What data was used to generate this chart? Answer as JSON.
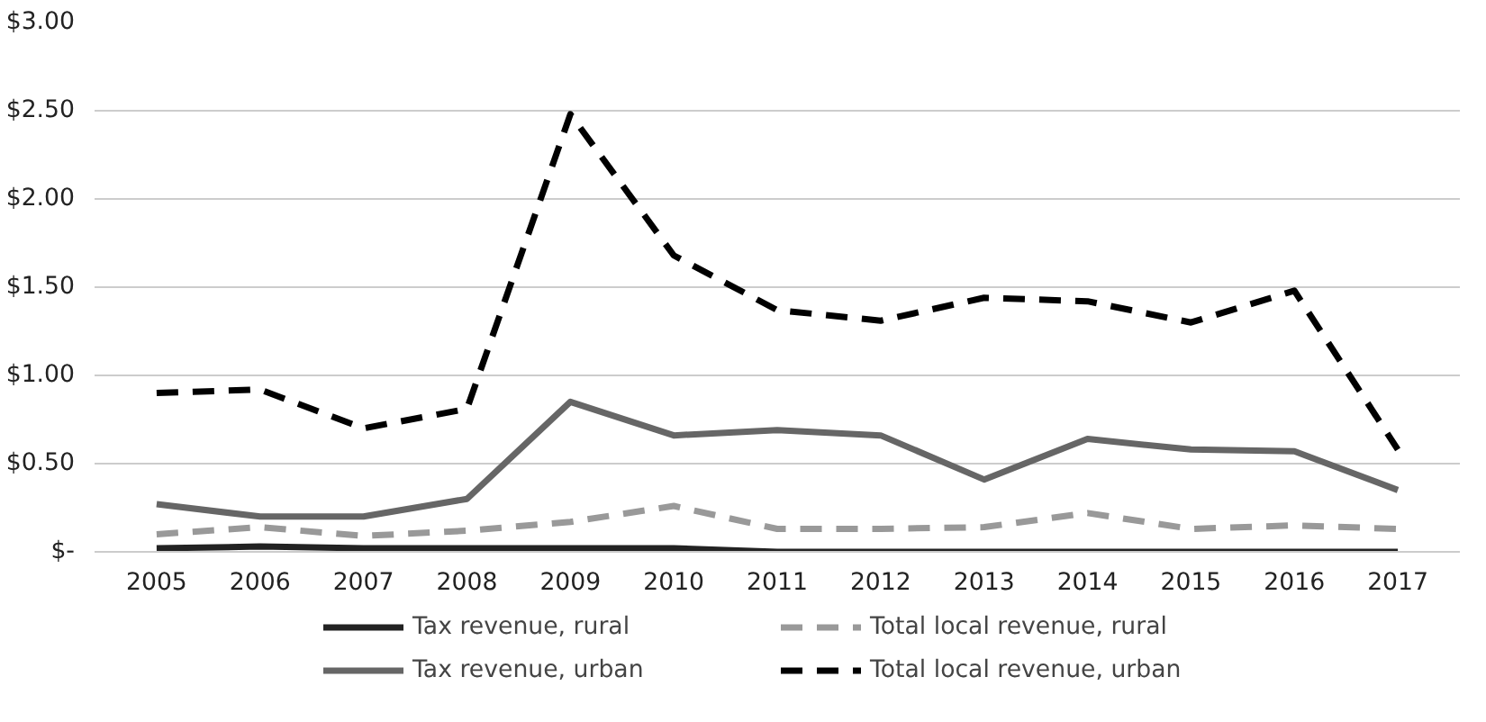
{
  "chart_data": {
    "type": "line",
    "categories": [
      "2005",
      "2006",
      "2007",
      "2008",
      "2009",
      "2010",
      "2011",
      "2012",
      "2013",
      "2014",
      "2015",
      "2016",
      "2017"
    ],
    "series": [
      {
        "name": "Tax revenue, rural",
        "color": "#222222",
        "line_style": "solid",
        "values": [
          0.02,
          0.03,
          0.02,
          0.02,
          0.02,
          0.02,
          0.0,
          0.0,
          0.0,
          0.0,
          0.0,
          0.0,
          0.0
        ]
      },
      {
        "name": "Total local revenue, rural",
        "color": "#999999",
        "line_style": "dashed",
        "values": [
          0.1,
          0.14,
          0.09,
          0.12,
          0.17,
          0.26,
          0.13,
          0.13,
          0.14,
          0.22,
          0.13,
          0.15,
          0.13
        ]
      },
      {
        "name": "Tax revenue, urban",
        "color": "#666666",
        "line_style": "solid",
        "values": [
          0.27,
          0.2,
          0.2,
          0.3,
          0.85,
          0.66,
          0.69,
          0.66,
          0.41,
          0.64,
          0.58,
          0.57,
          0.35
        ]
      },
      {
        "name": "Total local revenue, urban",
        "color": "#000000",
        "line_style": "dashed",
        "values": [
          0.9,
          0.92,
          0.7,
          0.81,
          2.48,
          1.68,
          1.37,
          1.31,
          1.44,
          1.42,
          1.3,
          1.48,
          0.58
        ]
      }
    ],
    "ylim": [
      0,
      3
    ],
    "yticks": [
      {
        "value": 0,
        "label": "$-"
      },
      {
        "value": 0.5,
        "label": "$0.50"
      },
      {
        "value": 1,
        "label": "$1.00"
      },
      {
        "value": 1.5,
        "label": "$1.50"
      },
      {
        "value": 2,
        "label": "$2.00"
      },
      {
        "value": 2.5,
        "label": "$2.50"
      },
      {
        "value": 3,
        "label": "$3.00"
      }
    ],
    "grid": "y",
    "legend": "bottom",
    "marker": "none"
  }
}
